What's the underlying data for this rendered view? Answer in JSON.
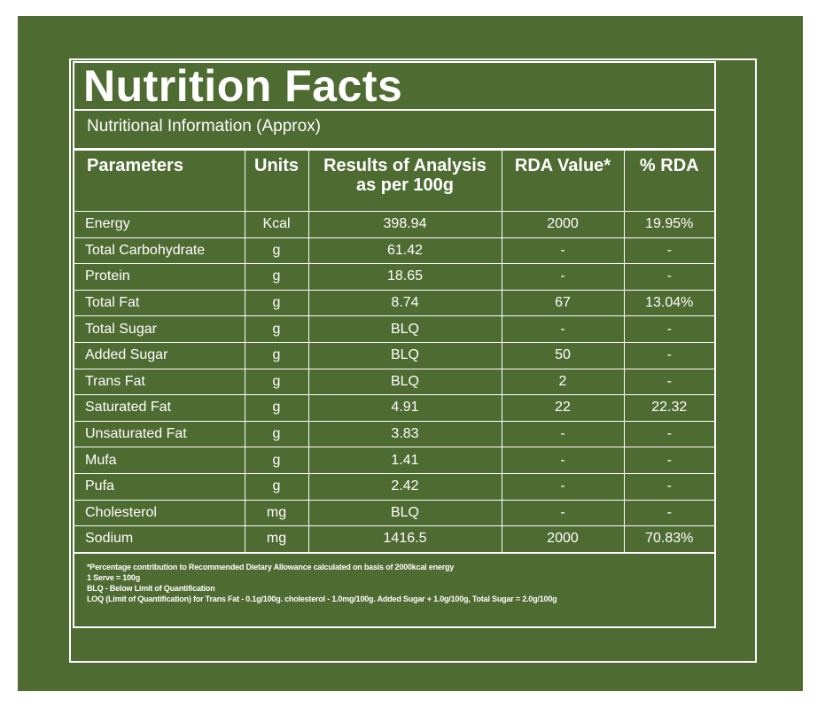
{
  "label": {
    "title": "Nutrition Facts",
    "subtitle": "Nutritional Information (Approx)"
  },
  "table": {
    "headers": {
      "parameters": "Parameters",
      "units": "Units",
      "results_line1": "Results of Analysis",
      "results_line2": "as per 100g",
      "rda_value": "RDA Value*",
      "pct_rda": "% RDA"
    },
    "rows": [
      {
        "parameter": "Energy",
        "unit": "Kcal",
        "result": "398.94",
        "rda": "2000",
        "pct": "19.95%"
      },
      {
        "parameter": "Total Carbohydrate",
        "unit": "g",
        "result": "61.42",
        "rda": "-",
        "pct": "-"
      },
      {
        "parameter": "Protein",
        "unit": "g",
        "result": "18.65",
        "rda": "-",
        "pct": "-"
      },
      {
        "parameter": "Total Fat",
        "unit": "g",
        "result": "8.74",
        "rda": "67",
        "pct": "13.04%"
      },
      {
        "parameter": "Total Sugar",
        "unit": "g",
        "result": "BLQ",
        "rda": "-",
        "pct": "-"
      },
      {
        "parameter": "Added Sugar",
        "unit": "g",
        "result": "BLQ",
        "rda": "50",
        "pct": "-"
      },
      {
        "parameter": "Trans Fat",
        "unit": "g",
        "result": "BLQ",
        "rda": "2",
        "pct": "-"
      },
      {
        "parameter": "Saturated Fat",
        "unit": "g",
        "result": "4.91",
        "rda": "22",
        "pct": "22.32"
      },
      {
        "parameter": "Unsaturated Fat",
        "unit": "g",
        "result": "3.83",
        "rda": "-",
        "pct": "-"
      },
      {
        "parameter": "Mufa",
        "unit": "g",
        "result": "1.41",
        "rda": "-",
        "pct": "-"
      },
      {
        "parameter": "Pufa",
        "unit": "g",
        "result": "2.42",
        "rda": "-",
        "pct": "-"
      },
      {
        "parameter": "Cholesterol",
        "unit": "mg",
        "result": "BLQ",
        "rda": "-",
        "pct": "-"
      },
      {
        "parameter": "Sodium",
        "unit": "mg",
        "result": "1416.5",
        "rda": "2000",
        "pct": "70.83%"
      }
    ]
  },
  "footnotes": [
    "*Percentage contribution to Recommended Dietary Allowance calculated on basis of 2000kcal energy",
    "1 Serve = 100g",
    "BLQ - Below Limit of Quantification",
    "LOQ (Limit of Quantification) for Trans Fat - 0.1g/100g. cholesterol - 1.0mg/100g. Added Sugar + 1.0g/100g, Total Sugar = 2.0g/100g"
  ],
  "colors": {
    "background_green": "#4e6b32",
    "text": "#ffffff",
    "page": "#ffffff"
  }
}
